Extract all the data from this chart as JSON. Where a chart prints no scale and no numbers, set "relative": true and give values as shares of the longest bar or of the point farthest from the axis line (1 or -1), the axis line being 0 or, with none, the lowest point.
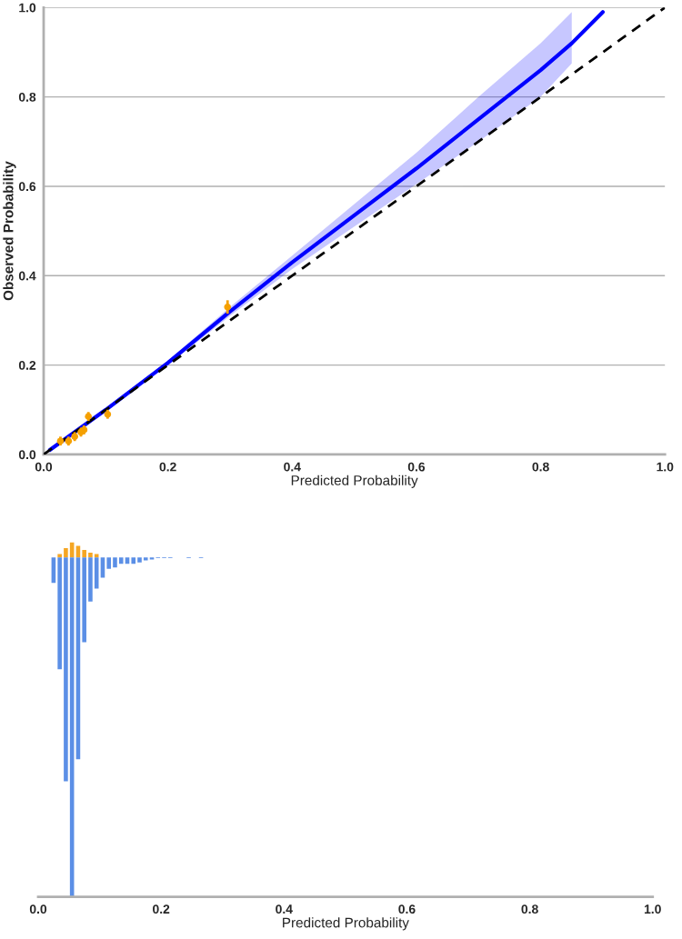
{
  "chart_data": [
    {
      "type": "line",
      "xlabel": "Predicted Probability",
      "ylabel": "Observed Probability",
      "xlim": [
        0,
        1
      ],
      "ylim": [
        0,
        1
      ],
      "xticks": [
        {
          "value": 0,
          "label": "0.0"
        },
        {
          "value": 0.2,
          "label": "0.2"
        },
        {
          "value": 0.4,
          "label": "0.4"
        },
        {
          "value": 0.6,
          "label": "0.6"
        },
        {
          "value": 0.8,
          "label": "0.8"
        },
        {
          "value": 1,
          "label": "1.0"
        }
      ],
      "yticks": [
        {
          "value": 0,
          "label": "0.0"
        },
        {
          "value": 0.2,
          "label": "0.2"
        },
        {
          "value": 0.4,
          "label": "0.4"
        },
        {
          "value": 0.6,
          "label": "0.6"
        },
        {
          "value": 0.8,
          "label": "0.8"
        },
        {
          "value": 1,
          "label": "1.0"
        }
      ],
      "grid": "y",
      "series": [
        {
          "type": "line",
          "color": "#0000ff",
          "line_style": "solid",
          "x": [
            0.01,
            0.1,
            0.2,
            0.3,
            0.4,
            0.5,
            0.6,
            0.7,
            0.8,
            0.85,
            0.9
          ],
          "values": [
            0.01,
            0.1,
            0.205,
            0.32,
            0.43,
            0.535,
            0.64,
            0.75,
            0.86,
            0.92,
            0.99
          ],
          "lower": [
            0.01,
            0.1,
            0.2,
            0.31,
            0.415,
            0.51,
            0.605,
            0.7,
            0.8,
            0.875,
            null
          ],
          "upper": [
            0.01,
            0.1,
            0.21,
            0.33,
            0.445,
            0.56,
            0.675,
            0.8,
            0.92,
            0.99,
            null
          ]
        },
        {
          "type": "line",
          "color": "#000000",
          "line_style": "dashed",
          "x": [
            0,
            1
          ],
          "values": [
            0,
            1
          ]
        },
        {
          "type": "scatter",
          "color": "#f5a000",
          "marker": "circle",
          "x": [
            0.027,
            0.04,
            0.05,
            0.06,
            0.065,
            0.072,
            0.103,
            0.296
          ],
          "values": [
            0.03,
            0.03,
            0.04,
            0.05,
            0.055,
            0.085,
            0.09,
            0.33
          ],
          "errors": [
            0.01,
            0.01,
            0.01,
            0.01,
            0.01,
            0.01,
            0.01,
            0.015
          ]
        }
      ]
    },
    {
      "type": "bar",
      "relative": true,
      "xlabel": "Predicted Probability",
      "xlim": [
        0,
        1
      ],
      "tick_labels": "x",
      "xticks": [
        {
          "value": 0,
          "label": "0.0"
        },
        {
          "value": 0.2,
          "label": "0.2"
        },
        {
          "value": 0.4,
          "label": "0.4"
        },
        {
          "value": 0.6,
          "label": "0.6"
        },
        {
          "value": 0.8,
          "label": "0.8"
        },
        {
          "value": 1,
          "label": "1.0"
        }
      ],
      "x": [
        0.025,
        0.035,
        0.045,
        0.055,
        0.065,
        0.075,
        0.085,
        0.095,
        0.105,
        0.115,
        0.125,
        0.135,
        0.145,
        0.155,
        0.165,
        0.175,
        0.185,
        0.195,
        0.205,
        0.215,
        0.245,
        0.265
      ],
      "series": [
        {
          "color": "#f5a623",
          "values": [
            null,
            0.01,
            0.027,
            0.044,
            0.034,
            0.022,
            0.014,
            0.01,
            null,
            null,
            null,
            null,
            null,
            null,
            null,
            null,
            null,
            null,
            null,
            null,
            null,
            null
          ]
        },
        {
          "color": "#5b8fe6",
          "values": [
            -0.075,
            -0.33,
            -0.66,
            -1,
            -0.595,
            -0.25,
            -0.13,
            -0.092,
            -0.06,
            -0.034,
            -0.03,
            -0.019,
            -0.019,
            -0.019,
            -0.015,
            -0.009,
            -0.0065,
            -0.0025,
            -0.0025,
            -0.0025,
            -0.002,
            -0.002
          ]
        }
      ]
    }
  ]
}
